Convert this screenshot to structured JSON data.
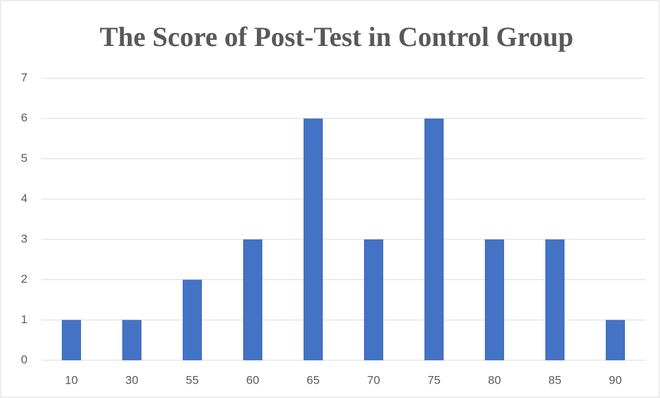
{
  "chart_data": {
    "type": "bar",
    "title": "The Score of Post-Test in Control Group",
    "categories": [
      "10",
      "30",
      "55",
      "60",
      "65",
      "70",
      "75",
      "80",
      "85",
      "90"
    ],
    "values": [
      1,
      1,
      2,
      3,
      6,
      3,
      6,
      3,
      3,
      1
    ],
    "color": "#4472c4",
    "ylim": [
      0,
      7
    ],
    "yticks": [
      0,
      1,
      2,
      3,
      4,
      5,
      6,
      7
    ],
    "grid": true
  }
}
